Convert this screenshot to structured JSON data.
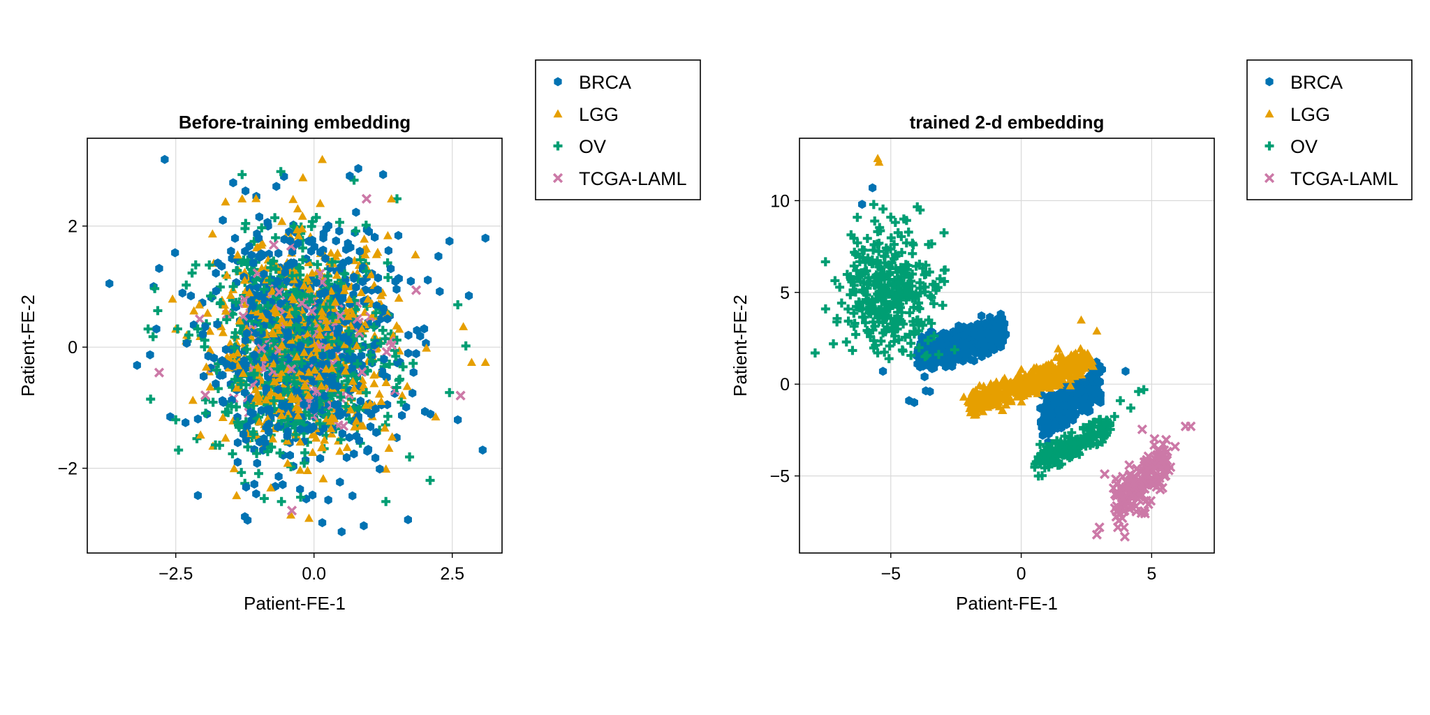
{
  "colors": {
    "BRCA": "#0072b2",
    "LGG": "#e69f00",
    "OV": "#009e73",
    "TCGA-LAML": "#cc79a7"
  },
  "chart_data": [
    {
      "type": "scatter",
      "title": "Before-training embedding",
      "xlabel": "Patient-FE-1",
      "ylabel": "Patient-FE-2",
      "xlim": [
        -4.1,
        3.4
      ],
      "ylim": [
        -3.4,
        3.45
      ],
      "xticks": [
        -2.5,
        0.0,
        2.5
      ],
      "xtick_labels": [
        "−2.5",
        "0.0",
        "2.5"
      ],
      "yticks": [
        -2,
        0,
        2
      ],
      "ytick_labels": [
        "−2",
        "0",
        "2"
      ],
      "grid": true,
      "legend_position": "right",
      "series": [
        {
          "name": "BRCA",
          "marker": "hexagon",
          "count": 700,
          "points": [
            [
              -3.7,
              1.05
            ],
            [
              -3.2,
              -0.3
            ],
            [
              -2.7,
              3.1
            ],
            [
              -2.8,
              1.3
            ],
            [
              -2.9,
              1.0
            ],
            [
              -2.85,
              0.3
            ],
            [
              -2.1,
              -2.45
            ],
            [
              -2.6,
              -1.15
            ],
            [
              1.7,
              -2.85
            ],
            [
              0.5,
              -3.05
            ],
            [
              0.15,
              -2.9
            ],
            [
              0.9,
              -2.95
            ],
            [
              3.05,
              -1.7
            ],
            [
              3.1,
              1.8
            ],
            [
              2.8,
              0.85
            ],
            [
              0.8,
              2.95
            ],
            [
              1.25,
              2.85
            ],
            [
              -0.7,
              -2.3
            ],
            [
              -1.25,
              -2.8
            ],
            [
              2.6,
              -1.2
            ],
            [
              2.45,
              1.75
            ],
            [
              2.25,
              1.5
            ]
          ],
          "cluster": {
            "center": [
              -0.2,
              0.0
            ],
            "spread": [
              0.85,
              0.95
            ]
          }
        },
        {
          "name": "LGG",
          "marker": "triangle",
          "count": 600,
          "points": [
            [
              0.15,
              3.1
            ],
            [
              -0.2,
              2.8
            ],
            [
              -2.3,
              0.2
            ],
            [
              -2.5,
              0.3
            ],
            [
              2.85,
              -0.25
            ],
            [
              3.1,
              -0.25
            ],
            [
              1.4,
              2.45
            ],
            [
              -1.3,
              2.45
            ],
            [
              -1.6,
              2.4
            ],
            [
              -1.6,
              -1.5
            ],
            [
              -1.4,
              -2.45
            ],
            [
              2.2,
              -1.15
            ]
          ],
          "cluster": {
            "center": [
              -0.15,
              0.05
            ],
            "spread": [
              0.8,
              0.85
            ]
          }
        },
        {
          "name": "OV",
          "marker": "plus",
          "count": 600,
          "points": [
            [
              -1.3,
              2.85
            ],
            [
              -0.6,
              2.9
            ],
            [
              -3.0,
              0.3
            ],
            [
              -2.5,
              -1.2
            ],
            [
              -2.45,
              -1.7
            ],
            [
              -1.25,
              -2.25
            ],
            [
              -0.9,
              -2.5
            ],
            [
              1.3,
              -2.55
            ],
            [
              2.1,
              -2.2
            ],
            [
              2.45,
              -0.75
            ],
            [
              2.6,
              0.7
            ],
            [
              1.5,
              2.45
            ]
          ],
          "cluster": {
            "center": [
              -0.3,
              -0.05
            ],
            "spread": [
              0.85,
              0.85
            ]
          }
        },
        {
          "name": "TCGA-LAML",
          "marker": "cross",
          "count": 150,
          "points": [
            [
              -2.8,
              -0.42
            ],
            [
              -0.4,
              -2.7
            ],
            [
              2.65,
              -0.8
            ],
            [
              0.95,
              2.45
            ]
          ],
          "cluster": {
            "center": [
              -0.3,
              0.1
            ],
            "spread": [
              0.65,
              0.7
            ]
          }
        }
      ]
    },
    {
      "type": "scatter",
      "title": "trained 2-d embedding",
      "xlabel": "Patient-FE-1",
      "ylabel": "Patient-FE-2",
      "xlim": [
        -8.5,
        7.4
      ],
      "ylim": [
        -9.2,
        13.4
      ],
      "xticks": [
        -5,
        0,
        5
      ],
      "xtick_labels": [
        "−5",
        "0",
        "5"
      ],
      "yticks": [
        -5,
        0,
        5,
        10
      ],
      "ytick_labels": [
        "−5",
        "0",
        "5",
        "10"
      ],
      "grid": true,
      "legend_position": "right",
      "series": [
        {
          "name": "BRCA",
          "marker": "hexagon",
          "points": [
            [
              -6.1,
              9.8
            ],
            [
              -5.7,
              10.7
            ],
            [
              -4.3,
              -0.9
            ],
            [
              -4.1,
              -1.0
            ],
            [
              -5.3,
              0.7
            ],
            [
              3.1,
              0.8
            ],
            [
              4.0,
              0.7
            ],
            [
              -3.5,
              -0.4
            ]
          ],
          "clusters": [
            {
              "count": 550,
              "center": [
                -2.3,
                2.2
              ],
              "spread": [
                1.0,
                0.8
              ],
              "line": true,
              "slope": 0.35
            },
            {
              "count": 350,
              "center": [
                1.9,
                -1.0
              ],
              "spread": [
                0.65,
                0.9
              ],
              "line": true,
              "slope": 0.9
            }
          ]
        },
        {
          "name": "LGG",
          "marker": "triangle",
          "points": [
            [
              -5.5,
              12.3
            ],
            [
              -5.45,
              12.1
            ],
            [
              2.3,
              3.5
            ],
            [
              2.9,
              2.9
            ],
            [
              -2.2,
              -0.7
            ],
            [
              -2.0,
              -0.9
            ]
          ],
          "clusters": [
            {
              "count": 550,
              "center": [
                0.3,
                0.1
              ],
              "spread": [
                1.4,
                0.6
              ],
              "line": true,
              "slope": 0.55
            }
          ]
        },
        {
          "name": "OV",
          "marker": "plus",
          "points": [
            [
              -7.9,
              1.7
            ],
            [
              -7.2,
              2.2
            ],
            [
              -7.5,
              4.1
            ],
            [
              -6.7,
              2.3
            ],
            [
              -5.0,
              9.1
            ],
            [
              -4.5,
              9.0
            ],
            [
              3.8,
              -0.9
            ],
            [
              4.5,
              -0.4
            ],
            [
              4.7,
              -0.3
            ],
            [
              4.2,
              -1.3
            ]
          ],
          "clusters": [
            {
              "count": 350,
              "center": [
                -5.0,
                5.2
              ],
              "spread": [
                0.9,
                1.6
              ],
              "line": false
            },
            {
              "count": 200,
              "center": [
                2.0,
                -3.3
              ],
              "spread": [
                0.9,
                0.55
              ],
              "line": true,
              "slope": 0.75
            }
          ]
        },
        {
          "name": "TCGA-LAML",
          "marker": "cross",
          "points": [
            [
              2.9,
              -8.2
            ],
            [
              3.0,
              -7.8
            ],
            [
              6.5,
              -2.3
            ],
            [
              6.3,
              -2.3
            ],
            [
              3.2,
              -4.9
            ],
            [
              5.9,
              -3.4
            ]
          ],
          "clusters": [
            {
              "count": 180,
              "center": [
                4.6,
                -5.3
              ],
              "spread": [
                0.6,
                1.3
              ],
              "line": true,
              "slope": 1.4
            }
          ]
        }
      ]
    }
  ]
}
